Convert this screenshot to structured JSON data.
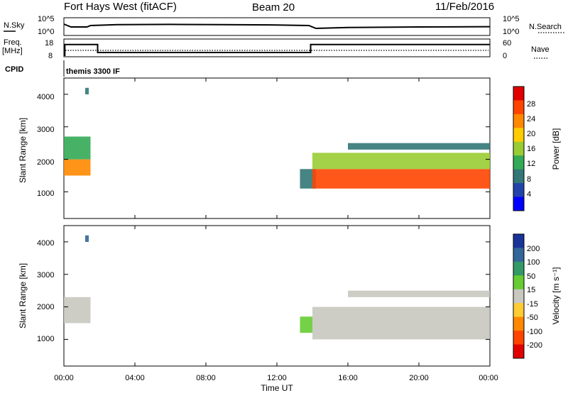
{
  "header": {
    "radar": "Fort Hays West (fitACF)",
    "beam": "Beam 20",
    "date": "11/Feb/2016"
  },
  "nsky_panel": {
    "left_label": "N.Sky",
    "right_label": "N.Search",
    "left_ticks": [
      "10^5",
      "10^0"
    ],
    "right_ticks": [
      "10^5",
      "10^0"
    ]
  },
  "freq_panel": {
    "left_label_1": "Freq.",
    "left_label_2": "[MHz]",
    "right_label": "Nave",
    "left_ticks": [
      "18",
      "8"
    ],
    "right_ticks": [
      "60",
      "0"
    ]
  },
  "cpid": {
    "label": "CPID",
    "value": "themis 3300 IF"
  },
  "time_axis": {
    "label": "Time UT",
    "ticks": [
      "00:00",
      "04:00",
      "08:00",
      "12:00",
      "16:00",
      "20:00",
      "00:00"
    ]
  },
  "power_panel": {
    "ylabel": "Slant Range [km]",
    "yticks": [
      "4000",
      "3000",
      "2000",
      "1000"
    ],
    "colorbar_label": "Power [dB]",
    "colorbar_ticks": [
      "28",
      "24",
      "20",
      "16",
      "12",
      "8",
      "4"
    ],
    "colorbar_colors": [
      "#e00000",
      "#ff4400",
      "#ff8800",
      "#ffcc00",
      "#99cc33",
      "#33aa55",
      "#337777",
      "#2244aa",
      "#0000ff"
    ]
  },
  "velocity_panel": {
    "ylabel": "Slant Range [km]",
    "yticks": [
      "4000",
      "3000",
      "2000",
      "1000"
    ],
    "colorbar_label": "Velocity [m s⁻¹]",
    "colorbar_ticks": [
      "200",
      "100",
      "50",
      "15",
      "-15",
      "-50",
      "-100",
      "-200"
    ],
    "colorbar_colors": [
      "#1a3399",
      "#336699",
      "#339966",
      "#66cc33",
      "#c8c8c0",
      "#ffcc33",
      "#ff8800",
      "#ff4400",
      "#e00000"
    ]
  },
  "chart_data": [
    {
      "type": "line",
      "name": "N.Sky",
      "xlim": [
        0,
        24
      ],
      "x": [
        0,
        0.4,
        1.3,
        1.5,
        3,
        6,
        9,
        12,
        13.8,
        14.2,
        16,
        20,
        24
      ],
      "y_log10": [
        3.5,
        2.5,
        2.5,
        3.0,
        3.3,
        3.4,
        3.3,
        3.2,
        3.0,
        2.0,
        2.3,
        2.5,
        2.6
      ]
    },
    {
      "type": "line",
      "name": "Freq. [MHz]",
      "xlim": [
        0,
        24
      ],
      "ylim": [
        8,
        18
      ],
      "x": [
        0,
        0.05,
        1.9,
        13.9,
        24
      ],
      "y": [
        8,
        17.5,
        10.5,
        17.5,
        17.5
      ]
    },
    {
      "type": "heatmap",
      "name": "Power [dB]",
      "xlim": [
        0,
        24
      ],
      "ylim": [
        180,
        4500
      ],
      "xlabel": "Time UT",
      "ylabel": "Slant Range [km]",
      "regions": [
        {
          "t0": 0,
          "t1": 1.5,
          "r0": 1500,
          "r1": 2000,
          "value": 22
        },
        {
          "t0": 0,
          "t1": 1.5,
          "r0": 2000,
          "r1": 2700,
          "value": 12
        },
        {
          "t0": 1.2,
          "t1": 1.4,
          "r0": 4000,
          "r1": 4200,
          "value": 10
        },
        {
          "t0": 13.3,
          "t1": 14.2,
          "r0": 1100,
          "r1": 1700,
          "value": 8
        },
        {
          "t0": 14.0,
          "t1": 24,
          "r0": 1100,
          "r1": 1700,
          "value": 26
        },
        {
          "t0": 14.0,
          "t1": 24,
          "r0": 1700,
          "r1": 2200,
          "value": 14
        },
        {
          "t0": 16.0,
          "t1": 24,
          "r0": 2300,
          "r1": 2500,
          "value": 8
        }
      ]
    },
    {
      "type": "heatmap",
      "name": "Velocity [m s⁻¹]",
      "xlim": [
        0,
        24
      ],
      "ylim": [
        180,
        4500
      ],
      "xlabel": "Time UT",
      "ylabel": "Slant Range [km]",
      "regions": [
        {
          "t0": 0,
          "t1": 1.5,
          "r0": 1500,
          "r1": 2300,
          "value": 0
        },
        {
          "t0": 1.2,
          "t1": 1.4,
          "r0": 4000,
          "r1": 4200,
          "value": 150
        },
        {
          "t0": 13.3,
          "t1": 14.0,
          "r0": 1200,
          "r1": 1700,
          "value": 40
        },
        {
          "t0": 14.0,
          "t1": 24,
          "r0": 1000,
          "r1": 2000,
          "value": 0
        },
        {
          "t0": 16.0,
          "t1": 24,
          "r0": 2300,
          "r1": 2500,
          "value": 0
        }
      ]
    }
  ]
}
